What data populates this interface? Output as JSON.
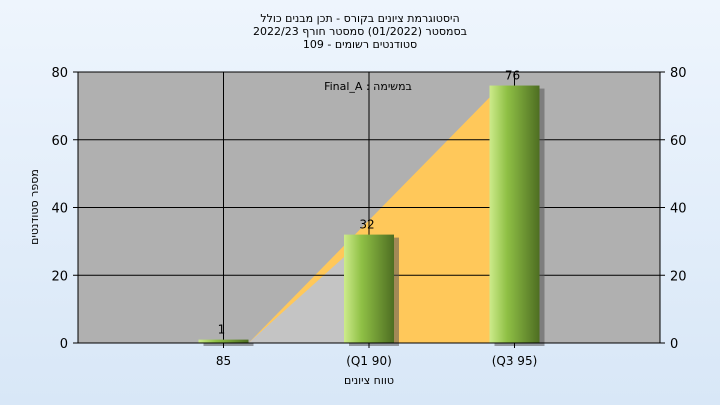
{
  "chart_data": {
    "type": "bar",
    "title_lines": [
      "היסטוגרמת ציונים בקורס - תכן מבנים כולל",
      "בסמסטר  (01/2022)  סמסטר חורף 2022/23",
      "סטודנטים רשומים - 109"
    ],
    "annotation": "Final_A : במשימה",
    "xlabel": "טווח ציונים",
    "ylabel": "מספר סטודנטים",
    "categories": [
      "85",
      "(Q1 90)",
      "(Q3 95)"
    ],
    "values": [
      1,
      32,
      76
    ],
    "data_labels": [
      "1",
      "32",
      "76"
    ],
    "ylim": [
      0,
      80
    ],
    "yticks": [
      0,
      20,
      40,
      60,
      80
    ],
    "grid": true,
    "colors": {
      "plot_bg": "#b0b0b0",
      "bar_light": "#cdeb8b",
      "bar_mid": "#8fc045",
      "bar_dark": "#4e6e22",
      "area_yellow": "#ffc85a",
      "area_gray": "#c4c4c4"
    }
  }
}
